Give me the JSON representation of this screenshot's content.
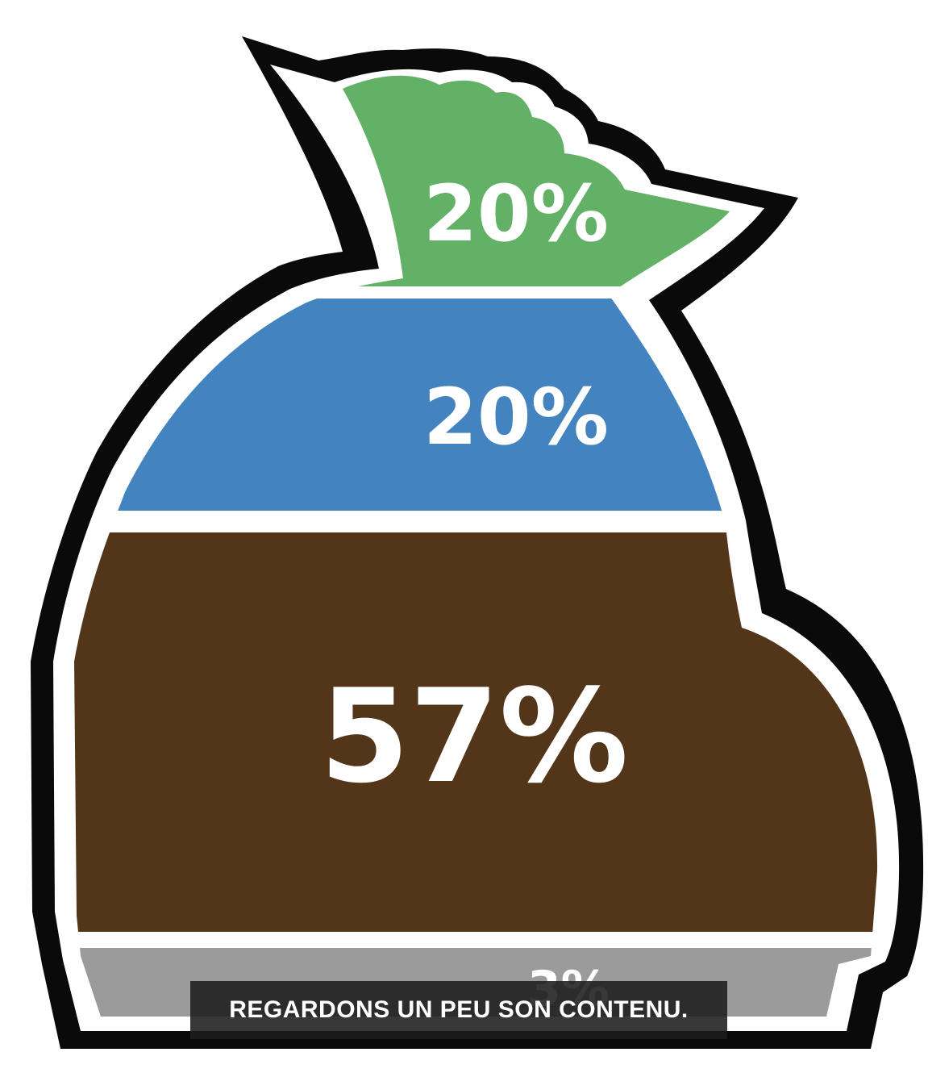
{
  "chart_data": {
    "type": "pie",
    "title": "",
    "segments": [
      {
        "label": "20%",
        "value": 20,
        "color": "#63b167"
      },
      {
        "label": "20%",
        "value": 20,
        "color": "#4383bf"
      },
      {
        "label": "57%",
        "value": 57,
        "color": "#53361a"
      },
      {
        "label": "3%",
        "value": 3,
        "color": "#9b9b9b"
      }
    ],
    "legend": "none",
    "grid": false
  },
  "caption": {
    "text": "REGARDONS UN PEU SON CONTENU."
  },
  "colors": {
    "outline": "#0a0a0a",
    "inner_ring": "#ffffff",
    "background": "#ffffff",
    "caption_bg": "#1c1c1c"
  }
}
